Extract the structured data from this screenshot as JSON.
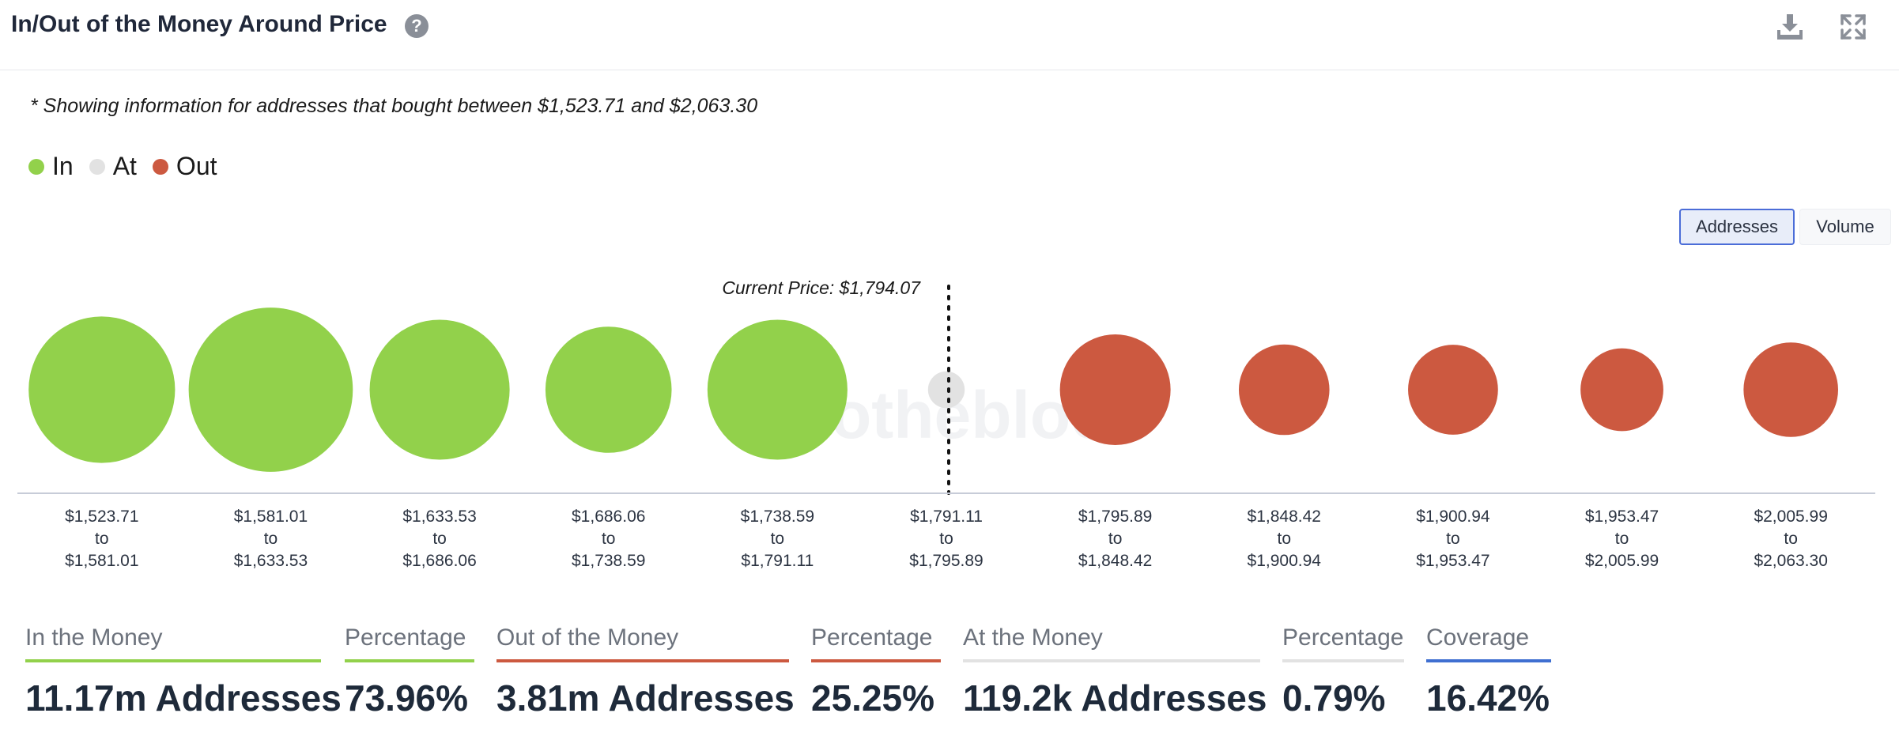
{
  "header": {
    "title": "In/Out of the Money Around Price",
    "help_icon": "question-circle-icon",
    "download_icon": "download-icon",
    "expand_icon": "expand-icon"
  },
  "note": "* Showing information for addresses that bought between $1,523.71 and $2,063.30",
  "legend": [
    {
      "label": "In",
      "color": "#92d14b"
    },
    {
      "label": "At",
      "color": "#e2e2e2"
    },
    {
      "label": "Out",
      "color": "#cc5940"
    }
  ],
  "toggle": {
    "addresses_label": "Addresses",
    "volume_label": "Volume",
    "selected": "Addresses"
  },
  "chart_data": {
    "type": "bubble",
    "current_price_label": "Current Price: $1,794.07",
    "current_price": 1794.07,
    "watermark": "intotheblock",
    "buckets": [
      {
        "low": "$1,523.71",
        "high": "$1,581.01",
        "status": "in",
        "size": 1.75
      },
      {
        "low": "$1,581.01",
        "high": "$1,633.53",
        "status": "in",
        "size": 2.2
      },
      {
        "low": "$1,633.53",
        "high": "$1,686.06",
        "status": "in",
        "size": 1.6
      },
      {
        "low": "$1,686.06",
        "high": "$1,738.59",
        "status": "in",
        "size": 1.3
      },
      {
        "low": "$1,738.59",
        "high": "$1,791.11",
        "status": "in",
        "size": 1.6
      },
      {
        "low": "$1,791.11",
        "high": "$1,795.89",
        "status": "at",
        "size": 0.11
      },
      {
        "low": "$1,795.89",
        "high": "$1,848.42",
        "status": "out",
        "size": 1.0
      },
      {
        "low": "$1,848.42",
        "high": "$1,900.94",
        "status": "out",
        "size": 0.67
      },
      {
        "low": "$1,900.94",
        "high": "$1,953.47",
        "status": "out",
        "size": 0.66
      },
      {
        "low": "$1,953.47",
        "high": "$2,005.99",
        "status": "out",
        "size": 0.56
      },
      {
        "low": "$2,005.99",
        "high": "$2,063.30",
        "status": "out",
        "size": 0.73
      }
    ],
    "range_word": "to",
    "colors": {
      "in": "#92d14b",
      "at": "#e2e2e2",
      "out": "#cc5940"
    }
  },
  "stats": [
    {
      "label": "In the Money",
      "value": "11.17m Addresses",
      "color": "#92d14b"
    },
    {
      "label": "Percentage",
      "value": "73.96%",
      "color": "#92d14b"
    },
    {
      "label": "Out of the Money",
      "value": "3.81m Addresses",
      "color": "#cc5940"
    },
    {
      "label": "Percentage",
      "value": "25.25%",
      "color": "#cc5940"
    },
    {
      "label": "At the Money",
      "value": "119.2k Addresses",
      "color": "#e2e2e2"
    },
    {
      "label": "Percentage",
      "value": "0.79%",
      "color": "#e2e2e2"
    },
    {
      "label": "Coverage",
      "value": "16.42%",
      "color": "#3f6fd1"
    }
  ]
}
